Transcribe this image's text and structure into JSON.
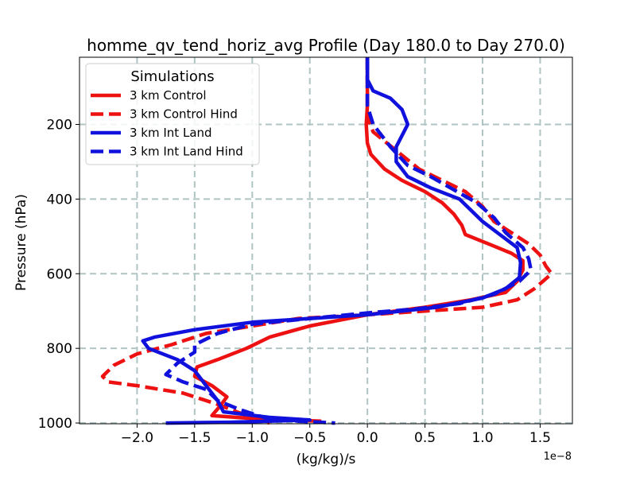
{
  "chart_data": {
    "type": "line",
    "title": "homme_qv_tend_horiz_avg Profile (Day 180.0 to Day 270.0)",
    "xlabel": "(kg/kg)/s",
    "ylabel": "Pressure (hPa)",
    "x_offset_text": "1e−8",
    "xlim": [
      -2.5,
      1.78
    ],
    "ylim": [
      1002,
      20
    ],
    "y_inverted": true,
    "grid": true,
    "x_ticks": [
      -2.0,
      -1.5,
      -1.0,
      -0.5,
      0.0,
      0.5,
      1.0,
      1.5
    ],
    "x_tick_labels": [
      "−2.0",
      "−1.5",
      "−1.0",
      "−0.5",
      "0.0",
      "0.5",
      "1.0",
      "1.5"
    ],
    "y_ticks": [
      200,
      400,
      600,
      800,
      1000
    ],
    "y_tick_labels": [
      "200",
      "400",
      "600",
      "800",
      "1000"
    ],
    "legend": {
      "title": "Simulations",
      "position": "top-left"
    },
    "series": [
      {
        "name": "3 km Control",
        "color": "#ee1111",
        "style": "solid",
        "points": [
          [
            0.0,
            20
          ],
          [
            0.0,
            100
          ],
          [
            0.0,
            150
          ],
          [
            -0.01,
            200
          ],
          [
            0.0,
            250
          ],
          [
            0.03,
            280
          ],
          [
            0.15,
            320
          ],
          [
            0.3,
            350
          ],
          [
            0.5,
            380
          ],
          [
            0.65,
            410
          ],
          [
            0.75,
            440
          ],
          [
            0.82,
            470
          ],
          [
            0.85,
            495
          ],
          [
            1.05,
            520
          ],
          [
            1.25,
            545
          ],
          [
            1.35,
            565
          ],
          [
            1.35,
            590
          ],
          [
            1.3,
            620
          ],
          [
            1.2,
            650
          ],
          [
            0.9,
            670
          ],
          [
            0.5,
            690
          ],
          [
            0.0,
            710
          ],
          [
            -0.5,
            740
          ],
          [
            -0.85,
            770
          ],
          [
            -1.05,
            800
          ],
          [
            -1.3,
            830
          ],
          [
            -1.48,
            850
          ],
          [
            -1.5,
            875
          ],
          [
            -1.35,
            900
          ],
          [
            -1.22,
            930
          ],
          [
            -1.28,
            955
          ],
          [
            -1.35,
            980
          ],
          [
            -1.0,
            988
          ],
          [
            -0.4,
            995
          ]
        ]
      },
      {
        "name": "3 km Control Hind",
        "color": "#ee1111",
        "style": "dashed",
        "points": [
          [
            0.0,
            20
          ],
          [
            0.0,
            100
          ],
          [
            0.0,
            180
          ],
          [
            0.05,
            220
          ],
          [
            0.25,
            270
          ],
          [
            0.45,
            320
          ],
          [
            0.65,
            350
          ],
          [
            0.85,
            380
          ],
          [
            1.0,
            420
          ],
          [
            1.1,
            460
          ],
          [
            1.25,
            490
          ],
          [
            1.4,
            520
          ],
          [
            1.5,
            550
          ],
          [
            1.55,
            580
          ],
          [
            1.6,
            600
          ],
          [
            1.45,
            640
          ],
          [
            1.3,
            670
          ],
          [
            1.0,
            690
          ],
          [
            0.5,
            700
          ],
          [
            0.0,
            710
          ],
          [
            -0.6,
            720
          ],
          [
            -1.0,
            740
          ],
          [
            -1.4,
            760
          ],
          [
            -1.7,
            790
          ],
          [
            -2.0,
            815
          ],
          [
            -2.2,
            845
          ],
          [
            -2.3,
            875
          ],
          [
            -2.25,
            890
          ],
          [
            -2.0,
            900
          ],
          [
            -1.6,
            920
          ],
          [
            -1.3,
            950
          ],
          [
            -1.05,
            980
          ],
          [
            -0.85,
            1000
          ]
        ]
      },
      {
        "name": "3 km Int Land",
        "color": "#1111dd",
        "style": "solid",
        "points": [
          [
            0.0,
            20
          ],
          [
            0.0,
            80
          ],
          [
            0.05,
            110
          ],
          [
            0.2,
            130
          ],
          [
            0.3,
            160
          ],
          [
            0.35,
            200
          ],
          [
            0.3,
            230
          ],
          [
            0.25,
            260
          ],
          [
            0.25,
            300
          ],
          [
            0.35,
            340
          ],
          [
            0.55,
            370
          ],
          [
            0.8,
            400
          ],
          [
            0.9,
            430
          ],
          [
            1.0,
            460
          ],
          [
            1.15,
            495
          ],
          [
            1.3,
            530
          ],
          [
            1.33,
            570
          ],
          [
            1.32,
            610
          ],
          [
            1.2,
            640
          ],
          [
            1.0,
            665
          ],
          [
            0.6,
            690
          ],
          [
            0.0,
            710
          ],
          [
            -0.5,
            720
          ],
          [
            -1.0,
            730
          ],
          [
            -1.5,
            750
          ],
          [
            -1.85,
            770
          ],
          [
            -1.95,
            780
          ],
          [
            -1.9,
            800
          ],
          [
            -1.65,
            830
          ],
          [
            -1.5,
            860
          ],
          [
            -1.4,
            900
          ],
          [
            -1.3,
            940
          ],
          [
            -1.25,
            970
          ],
          [
            -0.85,
            985
          ],
          [
            -0.5,
            992
          ],
          [
            -1.2,
            998
          ],
          [
            -1.75,
            1000
          ]
        ]
      },
      {
        "name": "3 km Int Land Hind",
        "color": "#1111dd",
        "style": "dashed",
        "points": [
          [
            0.0,
            20
          ],
          [
            0.0,
            80
          ],
          [
            0.0,
            150
          ],
          [
            0.05,
            200
          ],
          [
            0.2,
            260
          ],
          [
            0.35,
            310
          ],
          [
            0.55,
            340
          ],
          [
            0.75,
            375
          ],
          [
            0.95,
            410
          ],
          [
            1.1,
            450
          ],
          [
            1.2,
            490
          ],
          [
            1.35,
            530
          ],
          [
            1.4,
            560
          ],
          [
            1.42,
            590
          ],
          [
            1.32,
            620
          ],
          [
            1.1,
            655
          ],
          [
            0.8,
            680
          ],
          [
            0.4,
            695
          ],
          [
            0.0,
            705
          ],
          [
            -0.5,
            720
          ],
          [
            -1.0,
            735
          ],
          [
            -1.3,
            760
          ],
          [
            -1.5,
            790
          ],
          [
            -1.5,
            810
          ],
          [
            -1.65,
            840
          ],
          [
            -1.75,
            870
          ],
          [
            -1.6,
            890
          ],
          [
            -1.4,
            910
          ],
          [
            -1.3,
            940
          ],
          [
            -1.1,
            965
          ],
          [
            -0.9,
            985
          ],
          [
            -0.6,
            995
          ],
          [
            -0.28,
            1000
          ]
        ]
      }
    ]
  }
}
